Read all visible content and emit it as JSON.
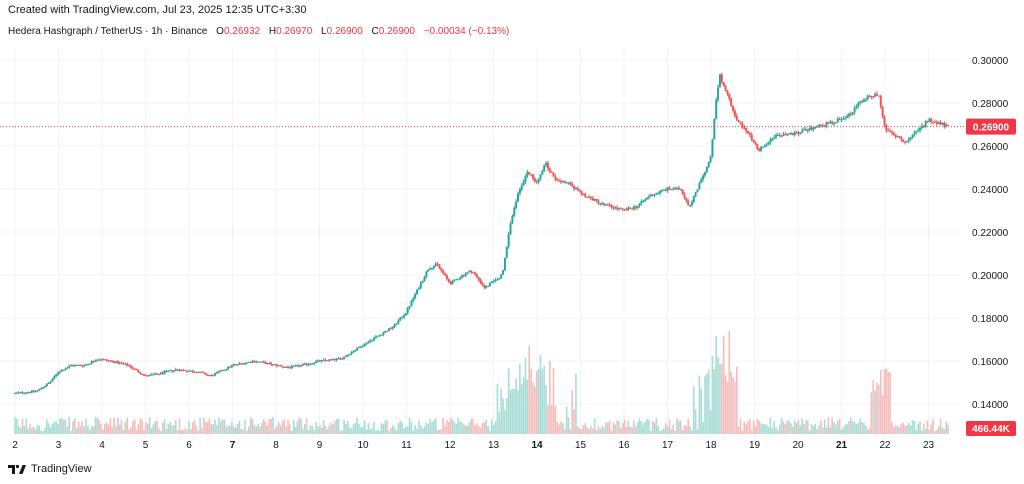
{
  "header": {
    "created": "Created with TradingView.com, Jul 23, 2025 12:35 UTC+3:30"
  },
  "legend": {
    "symbol": "Hedera Hashgraph / TetherUS · 1h · Binance",
    "o_label": "O",
    "o_value": "0.26932",
    "h_label": "H",
    "h_value": "0.26970",
    "l_label": "L",
    "l_value": "0.26900",
    "c_label": "C",
    "c_value": "0.26900",
    "change": "−0.00034 (−0.13%)"
  },
  "footer": {
    "brand": "TradingView"
  },
  "colors": {
    "up": "#26a69a",
    "down": "#ef5350",
    "grid": "#f0f3fa",
    "price_line": "#f23645",
    "volume_up": "#a8ddd6",
    "volume_down": "#f6bcbc"
  },
  "chart_data": {
    "type": "candlestick",
    "title": "Hedera Hashgraph / TetherUS · 1h · Binance",
    "y_ticks": [
      "0.30000",
      "0.28000",
      "0.26000",
      "0.24000",
      "0.22000",
      "0.20000",
      "0.18000",
      "0.16000",
      "0.14000"
    ],
    "ylim": [
      0.13,
      0.3
    ],
    "x_ticks": [
      "2",
      "3",
      "4",
      "5",
      "6",
      "7",
      "8",
      "9",
      "10",
      "11",
      "12",
      "13",
      "14",
      "15",
      "16",
      "17",
      "18",
      "19",
      "20",
      "21",
      "22",
      "23"
    ],
    "x_bold": [
      "7",
      "14",
      "21"
    ],
    "current_price_label": "0.26900",
    "current_price": 0.269,
    "volume_label": "466.44K",
    "grid": true,
    "price_path": [
      [
        2.0,
        0.145
      ],
      [
        2.5,
        0.146
      ],
      [
        2.8,
        0.15
      ],
      [
        3.0,
        0.155
      ],
      [
        3.3,
        0.158
      ],
      [
        3.6,
        0.158
      ],
      [
        3.9,
        0.161
      ],
      [
        4.2,
        0.16
      ],
      [
        4.6,
        0.158
      ],
      [
        5.0,
        0.153
      ],
      [
        5.3,
        0.154
      ],
      [
        5.7,
        0.156
      ],
      [
        6.2,
        0.155
      ],
      [
        6.5,
        0.153
      ],
      [
        7.0,
        0.158
      ],
      [
        7.5,
        0.16
      ],
      [
        8.0,
        0.158
      ],
      [
        8.3,
        0.157
      ],
      [
        8.6,
        0.158
      ],
      [
        9.0,
        0.16
      ],
      [
        9.5,
        0.161
      ],
      [
        9.8,
        0.165
      ],
      [
        10.2,
        0.17
      ],
      [
        10.7,
        0.176
      ],
      [
        11.0,
        0.183
      ],
      [
        11.3,
        0.195
      ],
      [
        11.5,
        0.203
      ],
      [
        11.7,
        0.205
      ],
      [
        12.0,
        0.196
      ],
      [
        12.3,
        0.2
      ],
      [
        12.5,
        0.202
      ],
      [
        12.8,
        0.194
      ],
      [
        13.0,
        0.197
      ],
      [
        13.2,
        0.2
      ],
      [
        13.4,
        0.225
      ],
      [
        13.6,
        0.24
      ],
      [
        13.8,
        0.248
      ],
      [
        14.0,
        0.243
      ],
      [
        14.2,
        0.252
      ],
      [
        14.4,
        0.245
      ],
      [
        14.7,
        0.243
      ],
      [
        15.0,
        0.238
      ],
      [
        15.5,
        0.233
      ],
      [
        16.0,
        0.23
      ],
      [
        16.3,
        0.232
      ],
      [
        16.6,
        0.237
      ],
      [
        17.0,
        0.24
      ],
      [
        17.3,
        0.24
      ],
      [
        17.5,
        0.232
      ],
      [
        17.8,
        0.245
      ],
      [
        18.0,
        0.255
      ],
      [
        18.1,
        0.278
      ],
      [
        18.2,
        0.293
      ],
      [
        18.35,
        0.285
      ],
      [
        18.6,
        0.272
      ],
      [
        18.9,
        0.265
      ],
      [
        19.1,
        0.258
      ],
      [
        19.4,
        0.264
      ],
      [
        19.7,
        0.265
      ],
      [
        20.0,
        0.266
      ],
      [
        20.4,
        0.269
      ],
      [
        20.8,
        0.271
      ],
      [
        21.0,
        0.273
      ],
      [
        21.2,
        0.275
      ],
      [
        21.4,
        0.28
      ],
      [
        21.6,
        0.283
      ],
      [
        21.85,
        0.284
      ],
      [
        22.0,
        0.268
      ],
      [
        22.2,
        0.265
      ],
      [
        22.5,
        0.262
      ],
      [
        22.8,
        0.268
      ],
      [
        23.0,
        0.272
      ],
      [
        23.2,
        0.271
      ],
      [
        23.45,
        0.269
      ]
    ]
  }
}
